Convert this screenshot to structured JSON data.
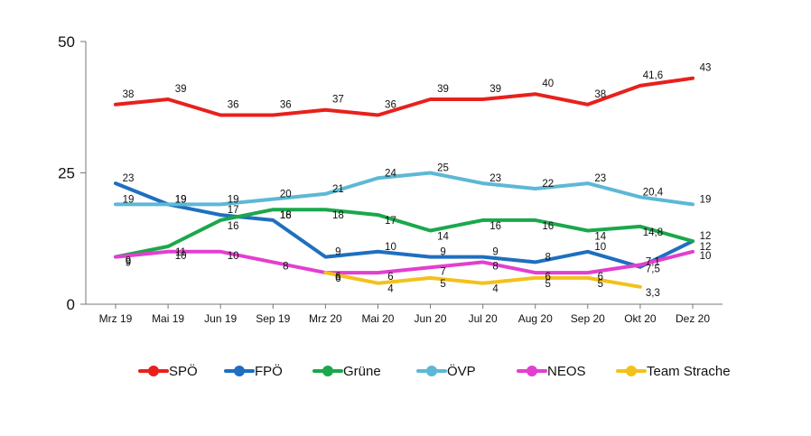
{
  "chart_data": {
    "type": "line",
    "categories": [
      "Mrz 19",
      "Mai 19",
      "Jun 19",
      "Sep 19",
      "Mrz 20",
      "Mai 20",
      "Jun 20",
      "Jul 20",
      "Aug 20",
      "Sep 20",
      "Okt 20",
      "Dez 20"
    ],
    "ylim": [
      0,
      50
    ],
    "yticks": [
      "0",
      "25",
      "50"
    ],
    "grid": false,
    "legend_position": "bottom",
    "series": [
      {
        "name": "SPÖ",
        "color": "#e8201c",
        "values": [
          38,
          39,
          36,
          36,
          37,
          36,
          39,
          39,
          40,
          38,
          41.6,
          43
        ],
        "labels": [
          "38",
          "39",
          "36",
          "36",
          "37",
          "36",
          "39",
          "39",
          "40",
          "38",
          "41,6",
          "43"
        ]
      },
      {
        "name": "FPÖ",
        "color": "#1f6fc0",
        "values": [
          23,
          19,
          17,
          16,
          9,
          10,
          9,
          9,
          8,
          10,
          7.1,
          12
        ],
        "labels": [
          "23",
          "19",
          "17",
          "16",
          "9",
          "10",
          "9",
          "9",
          "8",
          "10",
          "7,1",
          "12"
        ]
      },
      {
        "name": "Grüne",
        "color": "#1aa84b",
        "values": [
          9,
          11,
          16,
          18,
          18,
          17,
          14,
          16,
          16,
          14,
          14.8,
          12
        ],
        "labels": [
          "9",
          "11",
          "16",
          "18",
          "18",
          "17",
          "14",
          "16",
          "16",
          "14",
          "14,8",
          "12"
        ]
      },
      {
        "name": "ÖVP",
        "color": "#5cb8d6",
        "values": [
          19,
          19,
          19,
          20,
          21,
          24,
          25,
          23,
          22,
          23,
          20.4,
          19
        ],
        "labels": [
          "19",
          "19",
          "19",
          "20",
          "21",
          "24",
          "25",
          "23",
          "22",
          "23",
          "20,4",
          "19"
        ]
      },
      {
        "name": "NEOS",
        "color": "#e23fd0",
        "values": [
          9,
          10,
          10,
          8,
          6,
          6,
          7,
          8,
          6,
          6,
          7.5,
          10
        ],
        "labels": [
          "9",
          "10",
          "10",
          "8",
          "6",
          "6",
          "7",
          "8",
          "6",
          "6",
          "7,5",
          "10"
        ]
      },
      {
        "name": "Team Strache",
        "color": "#f3c11b",
        "values": [
          null,
          null,
          null,
          null,
          6,
          4,
          5,
          4,
          5,
          5,
          3.3,
          null
        ],
        "labels": [
          "",
          "",
          "",
          "",
          "6",
          "4",
          "5",
          "4",
          "5",
          "5",
          "3,3",
          ""
        ]
      }
    ]
  }
}
